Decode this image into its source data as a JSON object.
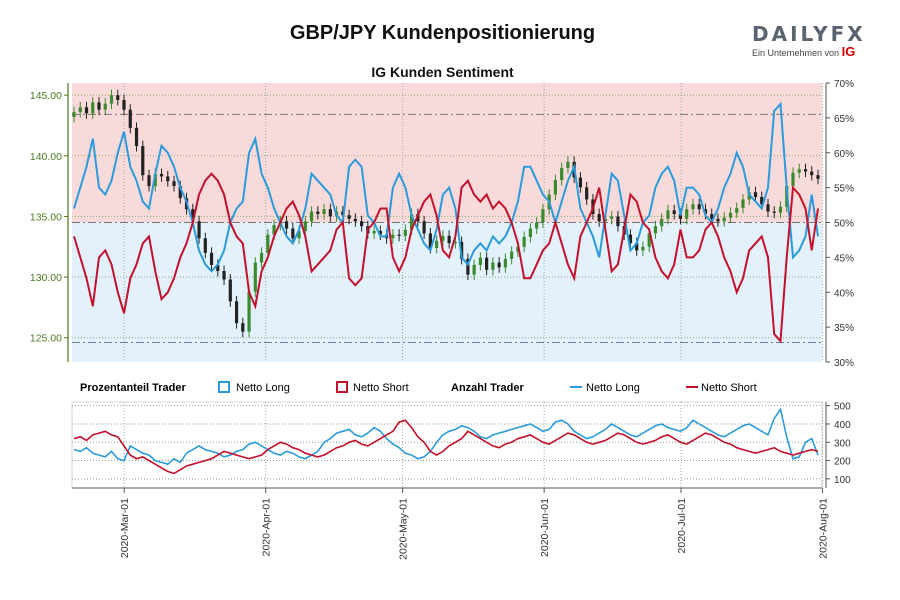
{
  "title": "GBP/JPY Kundenpositionierung",
  "subtitle": "IG Kunden Sentiment",
  "logo": {
    "brand": "DAILYFX",
    "tagline": "Ein Unternehmen von",
    "parent": "IG"
  },
  "colors": {
    "long": "#2a9bdc",
    "short": "#c4102a",
    "candle_up": "#3c8a2e",
    "candle_down": "#222222",
    "short_zone": "#f9dada",
    "long_zone": "#e2f1fb",
    "price_axis": "#4a7a1e"
  },
  "legend": {
    "pct_title": "Prozentanteil Trader",
    "pct_long": "Netto Long",
    "pct_short": "Netto Short",
    "count_title": "Anzahl Trader",
    "count_long": "Netto Long",
    "count_short": "Netto Short"
  },
  "chart_data": [
    {
      "type": "candlestick+line",
      "name": "price_and_sentiment",
      "y_left": {
        "ylim": [
          123,
          146
        ],
        "ticks": [
          "125.00",
          "130.00",
          "135.00",
          "140.00",
          "145.00"
        ]
      },
      "y_right": {
        "ylim": [
          30,
          70
        ],
        "ticks": [
          "30%",
          "35%",
          "40%",
          "45%",
          "50%",
          "55%",
          "60%",
          "65%",
          "70%"
        ]
      },
      "x_ticks": [
        "2020-Mar-01",
        "2020-Apr-01",
        "2020-May-01",
        "2020-Jun-01",
        "2020-Jul-01",
        "2020-Aug-01"
      ],
      "price_close": [
        143.6,
        144.0,
        143.5,
        144.4,
        143.8,
        144.3,
        145.0,
        144.6,
        143.8,
        142.3,
        140.8,
        138.4,
        137.5,
        138.5,
        138.3,
        137.9,
        137.5,
        136.5,
        135.6,
        134.6,
        133.2,
        132.0,
        131.0,
        130.5,
        129.8,
        128.0,
        126.2,
        125.5,
        128.8,
        131.2,
        132.0,
        133.5,
        134.3,
        134.6,
        134.0,
        133.2,
        133.8,
        134.6,
        135.4,
        135.2,
        135.6,
        135.0,
        135.4,
        135.1,
        134.8,
        134.6,
        134.2,
        133.6,
        133.8,
        133.5,
        133.2,
        133.5,
        133.4,
        133.9,
        135.2,
        134.6,
        133.6,
        132.4,
        133.0,
        133.4,
        132.8,
        132.9,
        131.5,
        130.2,
        131.0,
        131.6,
        130.6,
        131.2,
        130.8,
        131.5,
        132.1,
        132.5,
        133.3,
        134.0,
        134.5,
        135.6,
        136.8,
        138.0,
        139.0,
        139.5,
        138.2,
        137.4,
        136.4,
        135.2,
        134.6,
        134.8,
        135.0,
        134.2,
        133.5,
        132.8,
        132.2,
        132.5,
        133.6,
        134.2,
        134.8,
        135.5,
        135.2,
        134.8,
        135.6,
        136.0,
        135.6,
        135.2,
        134.8,
        134.6,
        134.9,
        135.3,
        135.7,
        136.4,
        137.0,
        136.6,
        136.0,
        135.4,
        135.3,
        135.8,
        137.5,
        138.6,
        138.9,
        138.7,
        138.4,
        138.1
      ],
      "series": [
        {
          "name": "Netto Long",
          "values": [
            52,
            55,
            58,
            62,
            55,
            54,
            56,
            60,
            63,
            58,
            56,
            53,
            52,
            57,
            61,
            60,
            58,
            55,
            53,
            50,
            46,
            44,
            43,
            44,
            46,
            50,
            52,
            53,
            60,
            62,
            57,
            55,
            52,
            50,
            48,
            47,
            49,
            52,
            57,
            56,
            55,
            54,
            51,
            50,
            58,
            59,
            58,
            51,
            50,
            48,
            48,
            55,
            57,
            55,
            51,
            49,
            47,
            46,
            49,
            54,
            55,
            52,
            45,
            44,
            46,
            47,
            46,
            48,
            47,
            48,
            50,
            53,
            58,
            58,
            56,
            54,
            53,
            50,
            53,
            56,
            58,
            52,
            50,
            48,
            45,
            51,
            57,
            56,
            51,
            46,
            47,
            50,
            51,
            55,
            57,
            58,
            56,
            51,
            55,
            55,
            54,
            51,
            50,
            52,
            55,
            57,
            60,
            58,
            54,
            53,
            52,
            55,
            66,
            67,
            55,
            45,
            46,
            48,
            54,
            48
          ]
        },
        {
          "name": "Netto Short",
          "values": [
            48,
            45,
            42,
            38,
            45,
            46,
            44,
            40,
            37,
            42,
            44,
            47,
            48,
            43,
            39,
            40,
            42,
            45,
            47,
            50,
            54,
            56,
            57,
            56,
            54,
            50,
            48,
            47,
            40,
            38,
            43,
            45,
            48,
            50,
            52,
            53,
            51,
            48,
            43,
            44,
            45,
            46,
            49,
            50,
            42,
            41,
            42,
            49,
            50,
            52,
            52,
            45,
            43,
            45,
            49,
            51,
            53,
            54,
            51,
            46,
            45,
            48,
            55,
            56,
            54,
            53,
            54,
            52,
            53,
            52,
            50,
            47,
            42,
            42,
            44,
            46,
            47,
            50,
            47,
            44,
            42,
            48,
            50,
            52,
            55,
            49,
            43,
            44,
            49,
            54,
            53,
            50,
            49,
            45,
            43,
            42,
            44,
            49,
            45,
            45,
            46,
            49,
            50,
            48,
            45,
            43,
            40,
            42,
            46,
            47,
            48,
            45,
            34,
            33,
            45,
            55,
            54,
            52,
            46,
            52
          ]
        }
      ]
    },
    {
      "type": "line",
      "name": "trader_counts",
      "ylim": [
        50,
        520
      ],
      "ticks": [
        "100",
        "200",
        "300",
        "400",
        "500"
      ],
      "series": [
        {
          "name": "Netto Long",
          "values": [
            260,
            250,
            270,
            240,
            230,
            220,
            250,
            210,
            200,
            280,
            260,
            240,
            230,
            200,
            190,
            180,
            210,
            190,
            240,
            260,
            280,
            260,
            250,
            240,
            220,
            230,
            250,
            260,
            290,
            300,
            280,
            260,
            240,
            230,
            250,
            240,
            220,
            210,
            230,
            250,
            300,
            320,
            350,
            360,
            370,
            340,
            330,
            350,
            380,
            360,
            320,
            290,
            270,
            240,
            230,
            210,
            220,
            250,
            300,
            340,
            360,
            370,
            390,
            380,
            360,
            330,
            320,
            340,
            350,
            360,
            370,
            380,
            390,
            400,
            380,
            360,
            370,
            410,
            420,
            400,
            360,
            340,
            320,
            330,
            350,
            370,
            400,
            380,
            360,
            340,
            330,
            350,
            370,
            390,
            400,
            380,
            370,
            360,
            380,
            420,
            400,
            380,
            360,
            340,
            330,
            350,
            370,
            390,
            400,
            380,
            360,
            340,
            430,
            480,
            330,
            210,
            220,
            300,
            320,
            230
          ]
        },
        {
          "name": "Netto Short",
          "values": [
            320,
            330,
            310,
            340,
            350,
            360,
            340,
            330,
            280,
            230,
            210,
            220,
            200,
            180,
            160,
            140,
            130,
            150,
            170,
            180,
            190,
            200,
            210,
            230,
            250,
            240,
            230,
            220,
            210,
            220,
            230,
            260,
            280,
            300,
            290,
            270,
            260,
            240,
            230,
            220,
            230,
            250,
            270,
            280,
            300,
            310,
            290,
            280,
            300,
            320,
            340,
            360,
            410,
            420,
            380,
            330,
            300,
            250,
            230,
            250,
            280,
            300,
            320,
            360,
            340,
            320,
            300,
            280,
            270,
            290,
            300,
            320,
            330,
            340,
            320,
            300,
            290,
            310,
            330,
            350,
            340,
            320,
            300,
            290,
            300,
            310,
            330,
            350,
            340,
            320,
            300,
            290,
            300,
            310,
            330,
            340,
            320,
            300,
            290,
            310,
            330,
            350,
            340,
            320,
            300,
            290,
            270,
            260,
            250,
            240,
            250,
            260,
            270,
            250,
            240,
            230,
            240,
            250,
            260,
            250
          ]
        }
      ]
    }
  ]
}
